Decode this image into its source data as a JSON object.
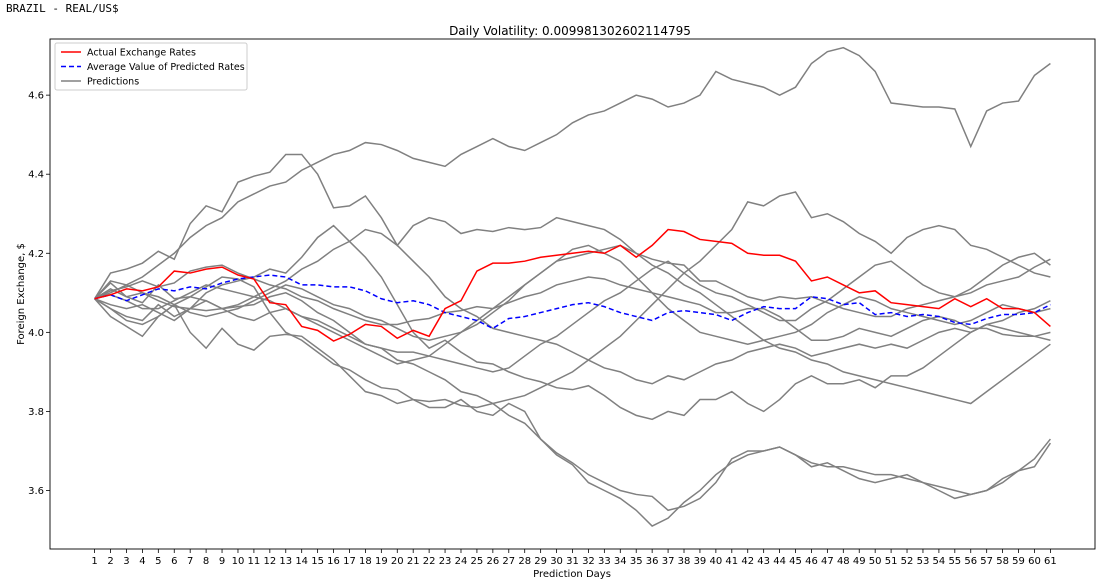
{
  "output_header": "BRAZIL - REAL/US$",
  "chart_data": {
    "type": "line",
    "title": "Daily Volatility: 0.009981302602114795",
    "xlabel": "Prediction Days",
    "ylabel": "Foreign Exchange, $",
    "x": [
      1,
      2,
      3,
      4,
      5,
      6,
      7,
      8,
      9,
      10,
      11,
      12,
      13,
      14,
      15,
      16,
      17,
      18,
      19,
      20,
      21,
      22,
      23,
      24,
      25,
      26,
      27,
      28,
      29,
      30,
      31,
      32,
      33,
      34,
      35,
      36,
      37,
      38,
      39,
      40,
      41,
      42,
      43,
      44,
      45,
      46,
      47,
      48,
      49,
      50,
      51,
      52,
      53,
      54,
      55,
      56,
      57,
      58,
      59,
      60,
      61
    ],
    "xlim": [
      -1.8,
      63.8
    ],
    "ylim": [
      3.452,
      4.742
    ],
    "yticks": [
      3.6,
      3.8,
      4.0,
      4.2,
      4.4,
      4.6
    ],
    "ytick_labels": [
      "3.6",
      "3.8",
      "4.0",
      "4.2",
      "4.4",
      "4.6"
    ],
    "legend_position": "top-left",
    "grid": false,
    "legend": [
      {
        "label": "Actual Exchange Rates",
        "color": "#ff0000",
        "style": "solid"
      },
      {
        "label": "Average Value of Predicted Rates",
        "color": "#0000ff",
        "style": "dashed"
      },
      {
        "label": "Predictions",
        "color": "#808080",
        "style": "solid"
      }
    ],
    "series": [
      {
        "name": "Actual Exchange Rates",
        "color": "#ff0000",
        "style": "solid",
        "values": [
          4.085,
          4.095,
          4.11,
          4.105,
          4.115,
          4.155,
          4.15,
          4.16,
          4.165,
          4.145,
          4.135,
          4.075,
          4.07,
          4.015,
          4.005,
          3.978,
          3.995,
          4.02,
          4.015,
          3.985,
          4.005,
          3.99,
          4.06,
          4.08,
          4.155,
          4.175,
          4.175,
          4.18,
          4.19,
          4.195,
          4.2,
          4.205,
          4.2,
          4.22,
          4.19,
          4.22,
          4.26,
          4.255,
          4.235,
          4.23,
          4.225,
          4.2,
          4.195,
          4.195,
          4.18,
          4.13,
          4.14,
          4.12,
          4.1,
          4.105,
          4.075,
          4.07,
          4.065,
          4.06,
          4.085,
          4.065,
          4.085,
          4.06,
          4.06,
          4.05,
          4.015
        ]
      },
      {
        "name": "Average Value of Predicted Rates",
        "color": "#0000ff",
        "style": "dashed",
        "values": [
          4.085,
          4.095,
          4.08,
          4.095,
          4.11,
          4.105,
          4.115,
          4.11,
          4.125,
          4.135,
          4.14,
          4.145,
          4.14,
          4.12,
          4.12,
          4.115,
          4.115,
          4.105,
          4.085,
          4.075,
          4.08,
          4.07,
          4.05,
          4.04,
          4.03,
          4.01,
          4.035,
          4.04,
          4.05,
          4.06,
          4.07,
          4.075,
          4.065,
          4.05,
          4.04,
          4.03,
          4.05,
          4.055,
          4.05,
          4.045,
          4.03,
          4.05,
          4.065,
          4.06,
          4.06,
          4.09,
          4.085,
          4.07,
          4.075,
          4.045,
          4.05,
          4.04,
          4.045,
          4.04,
          4.025,
          4.02,
          4.035,
          4.045,
          4.045,
          4.05,
          4.07
        ]
      },
      {
        "color": "#808080",
        "style": "solid",
        "values": [
          4.085,
          4.15,
          4.16,
          4.175,
          4.205,
          4.185,
          4.275,
          4.32,
          4.305,
          4.38,
          4.395,
          4.405,
          4.45,
          4.45,
          4.4,
          4.315,
          4.32,
          4.345,
          4.29,
          4.22,
          4.27,
          4.29,
          4.28,
          4.25,
          4.26,
          4.255,
          4.265,
          4.26,
          4.265,
          4.29,
          4.28,
          4.27,
          4.26,
          4.235,
          4.2,
          4.185,
          4.175,
          4.17,
          4.13,
          4.13,
          4.11,
          4.09,
          4.08,
          4.09,
          4.085,
          4.09,
          4.075,
          4.06,
          4.05,
          4.04,
          4.04,
          4.06,
          4.07,
          4.08,
          4.09,
          4.1,
          4.12,
          4.13,
          4.14,
          4.165,
          4.185
        ]
      },
      {
        "color": "#808080",
        "style": "solid",
        "values": [
          4.085,
          4.125,
          4.09,
          4.075,
          4.12,
          4.085,
          4.09,
          4.115,
          4.14,
          4.135,
          4.115,
          4.05,
          4.0,
          3.98,
          3.95,
          3.92,
          3.905,
          3.88,
          3.86,
          3.855,
          3.83,
          3.825,
          3.83,
          3.815,
          3.81,
          3.82,
          3.83,
          3.84,
          3.86,
          3.88,
          3.9,
          3.93,
          3.96,
          3.99,
          4.03,
          4.07,
          4.11,
          4.15,
          4.18,
          4.22,
          4.26,
          4.33,
          4.32,
          4.345,
          4.355,
          4.29,
          4.3,
          4.28,
          4.25,
          4.23,
          4.2,
          4.24,
          4.26,
          4.27,
          4.26,
          4.22,
          4.21,
          4.19,
          4.17,
          4.15,
          4.14
        ]
      },
      {
        "color": "#808080",
        "style": "solid",
        "values": [
          4.085,
          4.06,
          4.04,
          4.03,
          4.07,
          4.04,
          4.06,
          4.1,
          4.12,
          4.13,
          4.14,
          4.16,
          4.15,
          4.19,
          4.24,
          4.27,
          4.23,
          4.19,
          4.14,
          4.07,
          4.0,
          3.96,
          3.98,
          3.95,
          3.925,
          3.92,
          3.9,
          3.885,
          3.875,
          3.86,
          3.855,
          3.865,
          3.84,
          3.81,
          3.79,
          3.78,
          3.8,
          3.79,
          3.83,
          3.83,
          3.85,
          3.82,
          3.8,
          3.83,
          3.87,
          3.89,
          3.87,
          3.87,
          3.88,
          3.86,
          3.89,
          3.89,
          3.91,
          3.94,
          3.97,
          4.0,
          4.02,
          4.01,
          4.0,
          3.99,
          3.98
        ]
      },
      {
        "color": "#808080",
        "style": "solid",
        "values": [
          4.085,
          4.105,
          4.115,
          4.13,
          4.115,
          4.125,
          4.155,
          4.165,
          4.17,
          4.15,
          4.135,
          4.12,
          4.11,
          4.09,
          4.08,
          4.06,
          4.045,
          4.03,
          4.02,
          4.02,
          4.03,
          4.035,
          4.05,
          4.055,
          4.065,
          4.06,
          4.075,
          4.09,
          4.1,
          4.12,
          4.13,
          4.14,
          4.135,
          4.12,
          4.11,
          4.1,
          4.09,
          4.08,
          4.07,
          4.05,
          4.05,
          4.06,
          4.06,
          4.04,
          4.01,
          3.98,
          3.98,
          3.99,
          4.01,
          4.0,
          3.99,
          4.01,
          4.03,
          4.04,
          4.03,
          4.01,
          4.01,
          3.995,
          3.99,
          3.99,
          4.0
        ]
      },
      {
        "color": "#808080",
        "style": "solid",
        "values": [
          4.085,
          4.04,
          4.015,
          3.99,
          4.04,
          4.07,
          4.0,
          3.96,
          4.01,
          3.97,
          3.955,
          3.99,
          3.995,
          3.99,
          3.96,
          3.93,
          3.89,
          3.85,
          3.84,
          3.82,
          3.83,
          3.81,
          3.81,
          3.83,
          3.8,
          3.79,
          3.82,
          3.8,
          3.73,
          3.695,
          3.67,
          3.64,
          3.62,
          3.6,
          3.59,
          3.585,
          3.55,
          3.56,
          3.58,
          3.62,
          3.68,
          3.7,
          3.7,
          3.71,
          3.69,
          3.66,
          3.67,
          3.65,
          3.63,
          3.62,
          3.63,
          3.64,
          3.62,
          3.6,
          3.58,
          3.59,
          3.6,
          3.63,
          3.65,
          3.66,
          3.72
        ]
      },
      {
        "color": "#808080",
        "style": "solid",
        "values": [
          4.085,
          4.11,
          4.09,
          4.1,
          4.08,
          4.065,
          4.06,
          4.055,
          4.06,
          4.065,
          4.07,
          4.09,
          4.1,
          4.08,
          4.05,
          4.03,
          4.0,
          3.97,
          3.96,
          3.93,
          3.92,
          3.9,
          3.88,
          3.85,
          3.84,
          3.82,
          3.79,
          3.77,
          3.73,
          3.69,
          3.665,
          3.62,
          3.6,
          3.58,
          3.55,
          3.51,
          3.53,
          3.57,
          3.6,
          3.64,
          3.67,
          3.69,
          3.7,
          3.71,
          3.69,
          3.67,
          3.66,
          3.66,
          3.65,
          3.64,
          3.64,
          3.63,
          3.62,
          3.61,
          3.6,
          3.59,
          3.6,
          3.62,
          3.65,
          3.68,
          3.73
        ]
      },
      {
        "color": "#808080",
        "style": "solid",
        "values": [
          4.085,
          4.1,
          4.12,
          4.14,
          4.17,
          4.2,
          4.24,
          4.27,
          4.29,
          4.33,
          4.35,
          4.37,
          4.38,
          4.41,
          4.43,
          4.45,
          4.46,
          4.48,
          4.475,
          4.46,
          4.44,
          4.43,
          4.42,
          4.45,
          4.47,
          4.49,
          4.47,
          4.46,
          4.48,
          4.5,
          4.53,
          4.55,
          4.56,
          4.58,
          4.6,
          4.59,
          4.57,
          4.58,
          4.6,
          4.66,
          4.64,
          4.63,
          4.62,
          4.6,
          4.62,
          4.68,
          4.71,
          4.72,
          4.7,
          4.66,
          4.58,
          4.575,
          4.57,
          4.57,
          4.565,
          4.47,
          4.56,
          4.58,
          4.585,
          4.65,
          4.68
        ]
      },
      {
        "color": "#808080",
        "style": "solid",
        "values": [
          4.085,
          4.095,
          4.08,
          4.06,
          4.06,
          4.08,
          4.1,
          4.12,
          4.11,
          4.1,
          4.09,
          4.08,
          4.06,
          4.04,
          4.03,
          4.01,
          3.99,
          3.97,
          3.96,
          3.95,
          3.95,
          3.94,
          3.93,
          3.92,
          3.91,
          3.9,
          3.91,
          3.94,
          3.97,
          3.99,
          4.02,
          4.05,
          4.08,
          4.1,
          4.13,
          4.16,
          4.18,
          4.15,
          4.12,
          4.1,
          4.09,
          4.07,
          4.05,
          4.03,
          4.03,
          4.06,
          4.08,
          4.11,
          4.14,
          4.17,
          4.18,
          4.15,
          4.12,
          4.1,
          4.09,
          4.11,
          4.14,
          4.17,
          4.19,
          4.2,
          4.17
        ]
      },
      {
        "color": "#808080",
        "style": "solid",
        "values": [
          4.085,
          4.07,
          4.06,
          4.07,
          4.05,
          4.03,
          4.06,
          4.08,
          4.06,
          4.07,
          4.09,
          4.11,
          4.13,
          4.16,
          4.18,
          4.21,
          4.23,
          4.26,
          4.25,
          4.22,
          4.18,
          4.14,
          4.09,
          4.06,
          4.04,
          4.01,
          4.0,
          3.99,
          3.98,
          3.97,
          3.95,
          3.93,
          3.91,
          3.9,
          3.88,
          3.87,
          3.89,
          3.88,
          3.9,
          3.92,
          3.93,
          3.95,
          3.96,
          3.97,
          3.96,
          3.94,
          3.95,
          3.96,
          3.97,
          3.96,
          3.97,
          3.96,
          3.98,
          4.0,
          4.01,
          4.0,
          4.02,
          4.03,
          4.05,
          4.06,
          4.08
        ]
      },
      {
        "color": "#808080",
        "style": "solid",
        "values": [
          4.085,
          4.13,
          4.12,
          4.1,
          4.09,
          4.07,
          4.05,
          4.04,
          4.05,
          4.06,
          4.08,
          4.1,
          4.12,
          4.11,
          4.09,
          4.07,
          4.06,
          4.04,
          4.03,
          4.01,
          3.99,
          3.98,
          3.99,
          4.0,
          4.02,
          4.05,
          4.08,
          4.12,
          4.15,
          4.18,
          4.21,
          4.22,
          4.2,
          4.18,
          4.14,
          4.1,
          4.06,
          4.03,
          4.0,
          3.99,
          3.98,
          3.97,
          3.98,
          3.99,
          4.0,
          4.02,
          4.05,
          4.07,
          4.09,
          4.08,
          4.06,
          4.05,
          4.04,
          4.03,
          4.02,
          4.03,
          4.05,
          4.07,
          4.06,
          4.05,
          4.06
        ]
      },
      {
        "color": "#808080",
        "style": "solid",
        "values": [
          4.085,
          4.06,
          4.03,
          4.02,
          4.04,
          4.07,
          4.09,
          4.08,
          4.06,
          4.04,
          4.03,
          4.05,
          4.06,
          4.04,
          4.02,
          4.0,
          3.98,
          3.96,
          3.94,
          3.92,
          3.93,
          3.94,
          3.97,
          4.0,
          4.03,
          4.06,
          4.09,
          4.12,
          4.15,
          4.18,
          4.19,
          4.2,
          4.21,
          4.22,
          4.2,
          4.17,
          4.15,
          4.12,
          4.1,
          4.07,
          4.04,
          4.01,
          3.98,
          3.96,
          3.95,
          3.93,
          3.92,
          3.9,
          3.89,
          3.88,
          3.87,
          3.86,
          3.85,
          3.84,
          3.83,
          3.82,
          3.85,
          3.88,
          3.91,
          3.94,
          3.97
        ]
      }
    ]
  }
}
